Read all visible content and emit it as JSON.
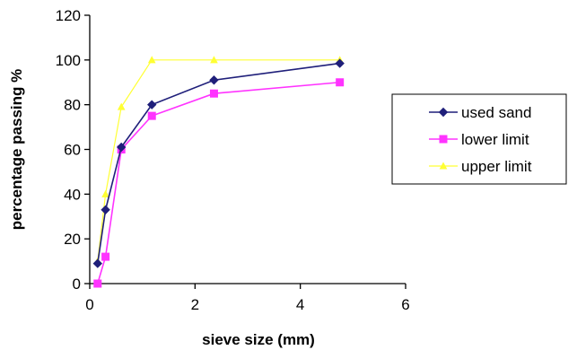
{
  "chart_data": {
    "type": "line",
    "xlabel": "sieve size (mm)",
    "ylabel": "percentage passing %",
    "xlim": [
      0,
      6
    ],
    "ylim": [
      0,
      120
    ],
    "xticks": [
      0,
      2,
      4,
      6
    ],
    "yticks": [
      0,
      20,
      40,
      60,
      80,
      100,
      120
    ],
    "grid": false,
    "legend_position": "right",
    "series": [
      {
        "name": "used sand",
        "color": "#1f1f7a",
        "marker": "diamond",
        "x": [
          0.15,
          0.3,
          0.6,
          1.18,
          2.36,
          4.75
        ],
        "y": [
          9,
          33,
          61,
          80,
          91,
          98.5
        ]
      },
      {
        "name": "lower limit",
        "color": "#ff33ff",
        "marker": "square",
        "x": [
          0.15,
          0.3,
          0.6,
          1.18,
          2.36,
          4.75
        ],
        "y": [
          0,
          12,
          60,
          75,
          85,
          90
        ]
      },
      {
        "name": "upper limit",
        "color": "#ffff33",
        "marker": "triangle",
        "x": [
          0.15,
          0.3,
          0.6,
          1.18,
          2.36,
          4.75
        ],
        "y": [
          10,
          40,
          79,
          100,
          100,
          100
        ]
      }
    ]
  }
}
